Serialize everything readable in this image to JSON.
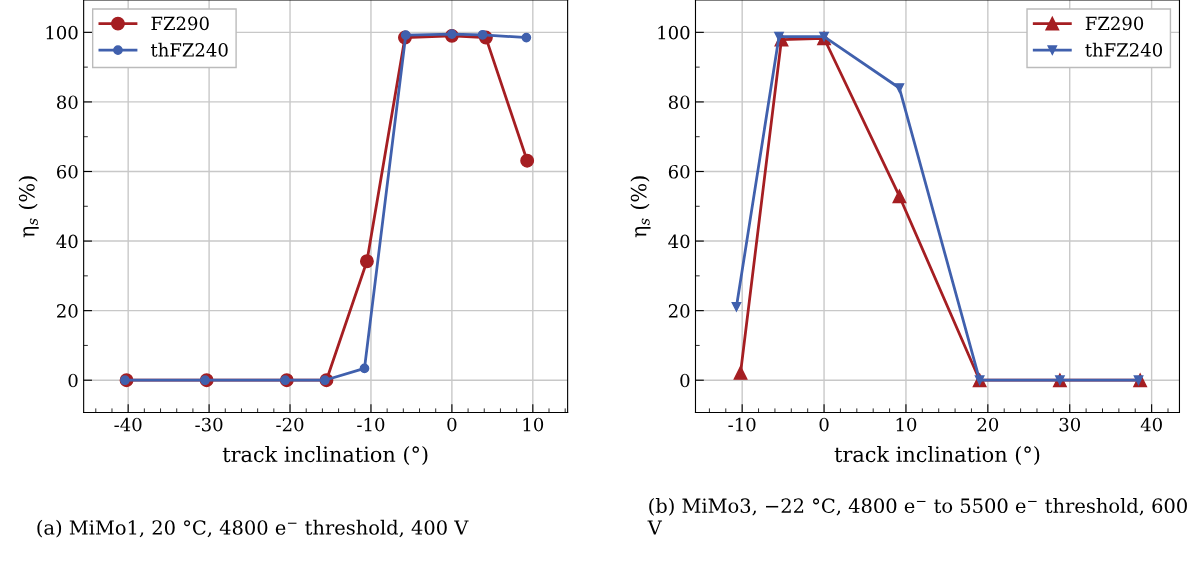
{
  "chart_data": [
    {
      "type": "line",
      "xlabel": "track inclination (°)",
      "ylabel": "η$_{s}$ (%)",
      "xlim": [
        -45.5,
        14.3
      ],
      "ylim": [
        -9.3,
        109.3
      ],
      "xticks": [
        -40,
        -30,
        -20,
        -10,
        0,
        10
      ],
      "yticks": [
        0,
        20,
        40,
        60,
        80,
        100
      ],
      "grid": true,
      "legend": "top left",
      "series": [
        {
          "name": "FZ290",
          "color": "#a51e22",
          "marker": "circle",
          "x": [
            -40.2,
            -30.3,
            -20.4,
            -15.5,
            -10.5,
            -5.8,
            0,
            4.2,
            9.3
          ],
          "values": [
            0,
            0,
            0,
            0,
            34.2,
            98.5,
            99,
            98.5,
            63.1
          ]
        },
        {
          "name": "thFZ240",
          "color": "#4060ad",
          "marker": "circle",
          "x": [
            -40.4,
            -30.5,
            -20.6,
            -15.7,
            -10.8,
            -5.7,
            0,
            3.8,
            9.2
          ],
          "values": [
            0,
            0,
            0,
            0,
            3.4,
            99.2,
            99.5,
            99.3,
            98.5
          ]
        }
      ],
      "annotations": [
        "(a) MiMo1, 20 °C, 4800 e$^{−}$ threshold, 400 V"
      ]
    },
    {
      "type": "line",
      "xlabel": "track inclination (°)",
      "ylabel": "η$_{s}$ (%)",
      "xlim": [
        -15.7,
        43.4
      ],
      "ylim": [
        -9.3,
        109.3
      ],
      "xticks": [
        -10,
        0,
        10,
        20,
        30,
        40
      ],
      "yticks": [
        0,
        20,
        40,
        60,
        80,
        100
      ],
      "grid": true,
      "legend": "top right",
      "series": [
        {
          "name": "FZ290",
          "color": "#a51e22",
          "marker": "triangle",
          "x": [
            -10.2,
            -5.2,
            0,
            9.2,
            19.0,
            28.8,
            38.6
          ],
          "values": [
            2.1,
            97.9,
            98.3,
            52.9,
            0,
            0,
            0
          ]
        },
        {
          "name": "thFZ240",
          "color": "#4060ad",
          "marker": "triangle_down",
          "x": [
            -10.7,
            -5.5,
            0,
            9.2,
            19.0,
            28.8,
            38.4
          ],
          "values": [
            21.1,
            98.8,
            98.8,
            84.0,
            0,
            0,
            0
          ]
        }
      ],
      "annotations": [
        "(b) MiMo3, −22 °C, 4800 e$^{−}$ to 5500 e$^{−}$ threshold, 600 V"
      ]
    }
  ]
}
